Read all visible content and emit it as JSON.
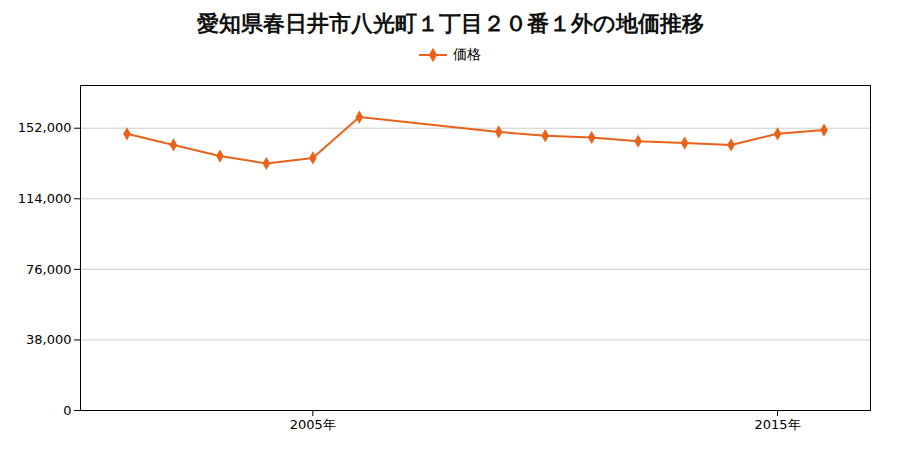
{
  "chart_data": {
    "type": "line",
    "title": "愛知県春日井市八光町１丁目２０番１外の地価推移",
    "x": [
      2001,
      2002,
      2003,
      2004,
      2005,
      2006,
      2009,
      2010,
      2011,
      2012,
      2013,
      2014,
      2015,
      2016
    ],
    "series": [
      {
        "name": "価格",
        "color": "#E8621A",
        "marker": "diamond",
        "values": [
          149000,
          143000,
          137000,
          133000,
          136000,
          158000,
          150000,
          148000,
          147000,
          145000,
          144000,
          143000,
          149000,
          151000
        ]
      }
    ],
    "xlim": [
      2000,
      2017
    ],
    "xticks": [
      {
        "value": 2005,
        "label": "2005年"
      },
      {
        "value": 2015,
        "label": "2015年"
      }
    ],
    "ylim": [
      0,
      175000
    ],
    "yticks": [
      0,
      {
        "value": 38000,
        "label": "38,000"
      },
      {
        "value": 76000,
        "label": "76,000"
      },
      {
        "value": 114000,
        "label": "114,000"
      },
      {
        "value": 152000,
        "label": "152,000"
      }
    ],
    "grid": "y",
    "legend": "top"
  }
}
